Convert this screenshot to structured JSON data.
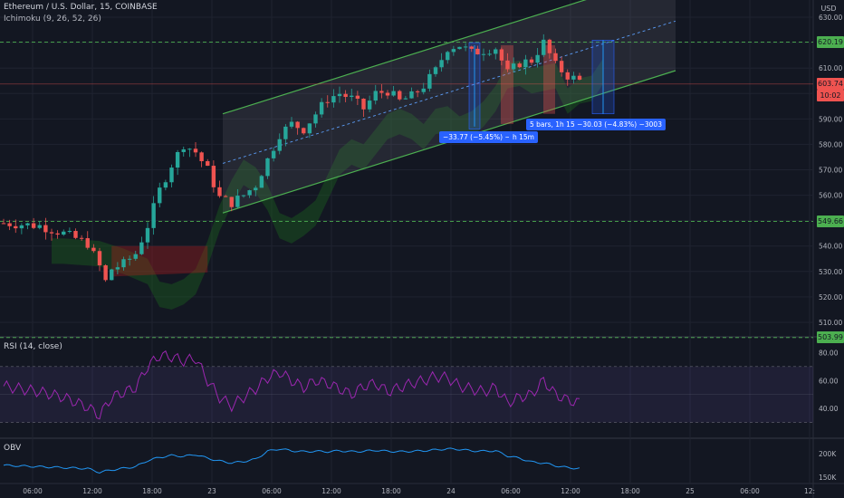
{
  "header": {
    "title": "Ethereum / U.S. Dollar, 15, COINBASE",
    "indicator": "Ichimoku (9, 26, 52, 26)"
  },
  "rsi": {
    "label": "RSI (14, close)",
    "ticks": [
      "80.00",
      "60.00",
      "40.00"
    ],
    "upper": 70,
    "lower": 30
  },
  "obv": {
    "label": "OBV",
    "ticks": [
      "200K",
      "150K"
    ]
  },
  "price_axis": {
    "currency": "USD",
    "ticks": [
      "630.00",
      "620.00",
      "610.00",
      "600.00",
      "590.00",
      "580.00",
      "570.00",
      "560.00",
      "550.00",
      "540.00",
      "530.00",
      "520.00",
      "510.00"
    ],
    "tags": [
      {
        "text": "620.19",
        "color": "#4caf50"
      },
      {
        "text": "603.74",
        "color": "#ef5350"
      },
      {
        "text": "10:02",
        "color": "#ef5350"
      },
      {
        "text": "549.66",
        "color": "#4caf50"
      },
      {
        "text": "503.99",
        "color": "#4caf50"
      }
    ]
  },
  "time_axis": [
    "06:00",
    "12:00",
    "18:00",
    "23",
    "06:00",
    "12:00",
    "18:00",
    "24",
    "06:00",
    "12:00",
    "18:00",
    "25",
    "06:00",
    "12:"
  ],
  "annotations": {
    "measure_left": "−33.77 (−5.45%) −3377",
    "measure_left_tail": "h 15m",
    "measure_right": "5 bars, 1h 15   −30.03 (−4.83%) −3003"
  },
  "colors": {
    "up": "#26a69a",
    "down": "#ef5350",
    "channel": "#4caf50",
    "level": "#4caf50",
    "rsi": "#9c27b0",
    "obv": "#2196f3"
  },
  "chart_data": {
    "type": "candlestick",
    "symbol": "ETHUSD",
    "interval": "15",
    "exchange": "COINBASE",
    "ylim": [
      505,
      635
    ],
    "horizontal_levels": [
      620.19,
      549.66,
      503.99
    ],
    "last_price": 603.74,
    "close_path": [
      [
        0,
        549
      ],
      [
        6,
        548
      ],
      [
        10,
        545
      ],
      [
        14,
        541
      ],
      [
        16,
        532
      ],
      [
        17,
        526
      ],
      [
        18,
        531
      ],
      [
        20,
        533
      ],
      [
        22,
        537
      ],
      [
        24,
        548
      ],
      [
        26,
        562
      ],
      [
        28,
        572
      ],
      [
        30,
        580
      ],
      [
        32,
        577
      ],
      [
        34,
        570
      ],
      [
        36,
        559
      ],
      [
        38,
        557
      ],
      [
        40,
        560
      ],
      [
        42,
        564
      ],
      [
        44,
        574
      ],
      [
        46,
        584
      ],
      [
        48,
        588
      ],
      [
        50,
        586
      ],
      [
        52,
        592
      ],
      [
        54,
        598
      ],
      [
        56,
        600
      ],
      [
        58,
        598
      ],
      [
        60,
        594
      ],
      [
        62,
        600
      ],
      [
        64,
        601
      ],
      [
        66,
        597
      ],
      [
        68,
        599
      ],
      [
        70,
        603
      ],
      [
        72,
        609
      ],
      [
        74,
        618
      ],
      [
        76,
        619
      ],
      [
        78,
        616
      ],
      [
        80,
        617
      ],
      [
        82,
        618
      ],
      [
        84,
        608
      ],
      [
        86,
        612
      ],
      [
        88,
        613
      ],
      [
        90,
        620
      ],
      [
        92,
        611
      ],
      [
        94,
        607
      ],
      [
        96,
        605
      ]
    ],
    "channel": {
      "upper": [
        [
          40,
          592
        ],
        [
          140,
          648
        ]
      ],
      "lower": [
        [
          40,
          553
        ],
        [
          140,
          609
        ]
      ]
    },
    "rsi_path": [
      [
        0,
        56
      ],
      [
        6,
        52
      ],
      [
        10,
        48
      ],
      [
        14,
        41
      ],
      [
        16,
        35
      ],
      [
        18,
        48
      ],
      [
        22,
        55
      ],
      [
        24,
        70
      ],
      [
        26,
        78
      ],
      [
        28,
        77
      ],
      [
        30,
        74
      ],
      [
        32,
        76
      ],
      [
        34,
        60
      ],
      [
        36,
        48
      ],
      [
        38,
        42
      ],
      [
        40,
        48
      ],
      [
        42,
        54
      ],
      [
        44,
        62
      ],
      [
        46,
        66
      ],
      [
        48,
        60
      ],
      [
        50,
        55
      ],
      [
        52,
        60
      ],
      [
        54,
        58
      ],
      [
        56,
        54
      ],
      [
        58,
        50
      ],
      [
        60,
        56
      ],
      [
        62,
        58
      ],
      [
        64,
        52
      ],
      [
        66,
        55
      ],
      [
        68,
        58
      ],
      [
        70,
        60
      ],
      [
        72,
        63
      ],
      [
        74,
        62
      ],
      [
        76,
        56
      ],
      [
        78,
        54
      ],
      [
        80,
        52
      ],
      [
        82,
        55
      ],
      [
        84,
        44
      ],
      [
        86,
        48
      ],
      [
        88,
        50
      ],
      [
        90,
        60
      ],
      [
        92,
        50
      ],
      [
        94,
        46
      ],
      [
        96,
        44
      ]
    ],
    "obv_path": [
      [
        0,
        175
      ],
      [
        6,
        172
      ],
      [
        10,
        170
      ],
      [
        14,
        168
      ],
      [
        16,
        160
      ],
      [
        18,
        165
      ],
      [
        22,
        172
      ],
      [
        24,
        185
      ],
      [
        26,
        192
      ],
      [
        28,
        196
      ],
      [
        30,
        194
      ],
      [
        32,
        198
      ],
      [
        34,
        190
      ],
      [
        36,
        184
      ],
      [
        38,
        180
      ],
      [
        40,
        183
      ],
      [
        42,
        188
      ],
      [
        44,
        205
      ],
      [
        46,
        210
      ],
      [
        48,
        206
      ],
      [
        50,
        204
      ],
      [
        52,
        205
      ],
      [
        54,
        204
      ],
      [
        56,
        206
      ],
      [
        58,
        204
      ],
      [
        60,
        205
      ],
      [
        62,
        207
      ],
      [
        64,
        205
      ],
      [
        66,
        204
      ],
      [
        68,
        205
      ],
      [
        70,
        206
      ],
      [
        72,
        208
      ],
      [
        74,
        210
      ],
      [
        76,
        209
      ],
      [
        78,
        206
      ],
      [
        80,
        205
      ],
      [
        82,
        206
      ],
      [
        84,
        195
      ],
      [
        86,
        190
      ],
      [
        88,
        182
      ],
      [
        90,
        180
      ],
      [
        92,
        174
      ],
      [
        94,
        170
      ],
      [
        96,
        168
      ]
    ]
  }
}
